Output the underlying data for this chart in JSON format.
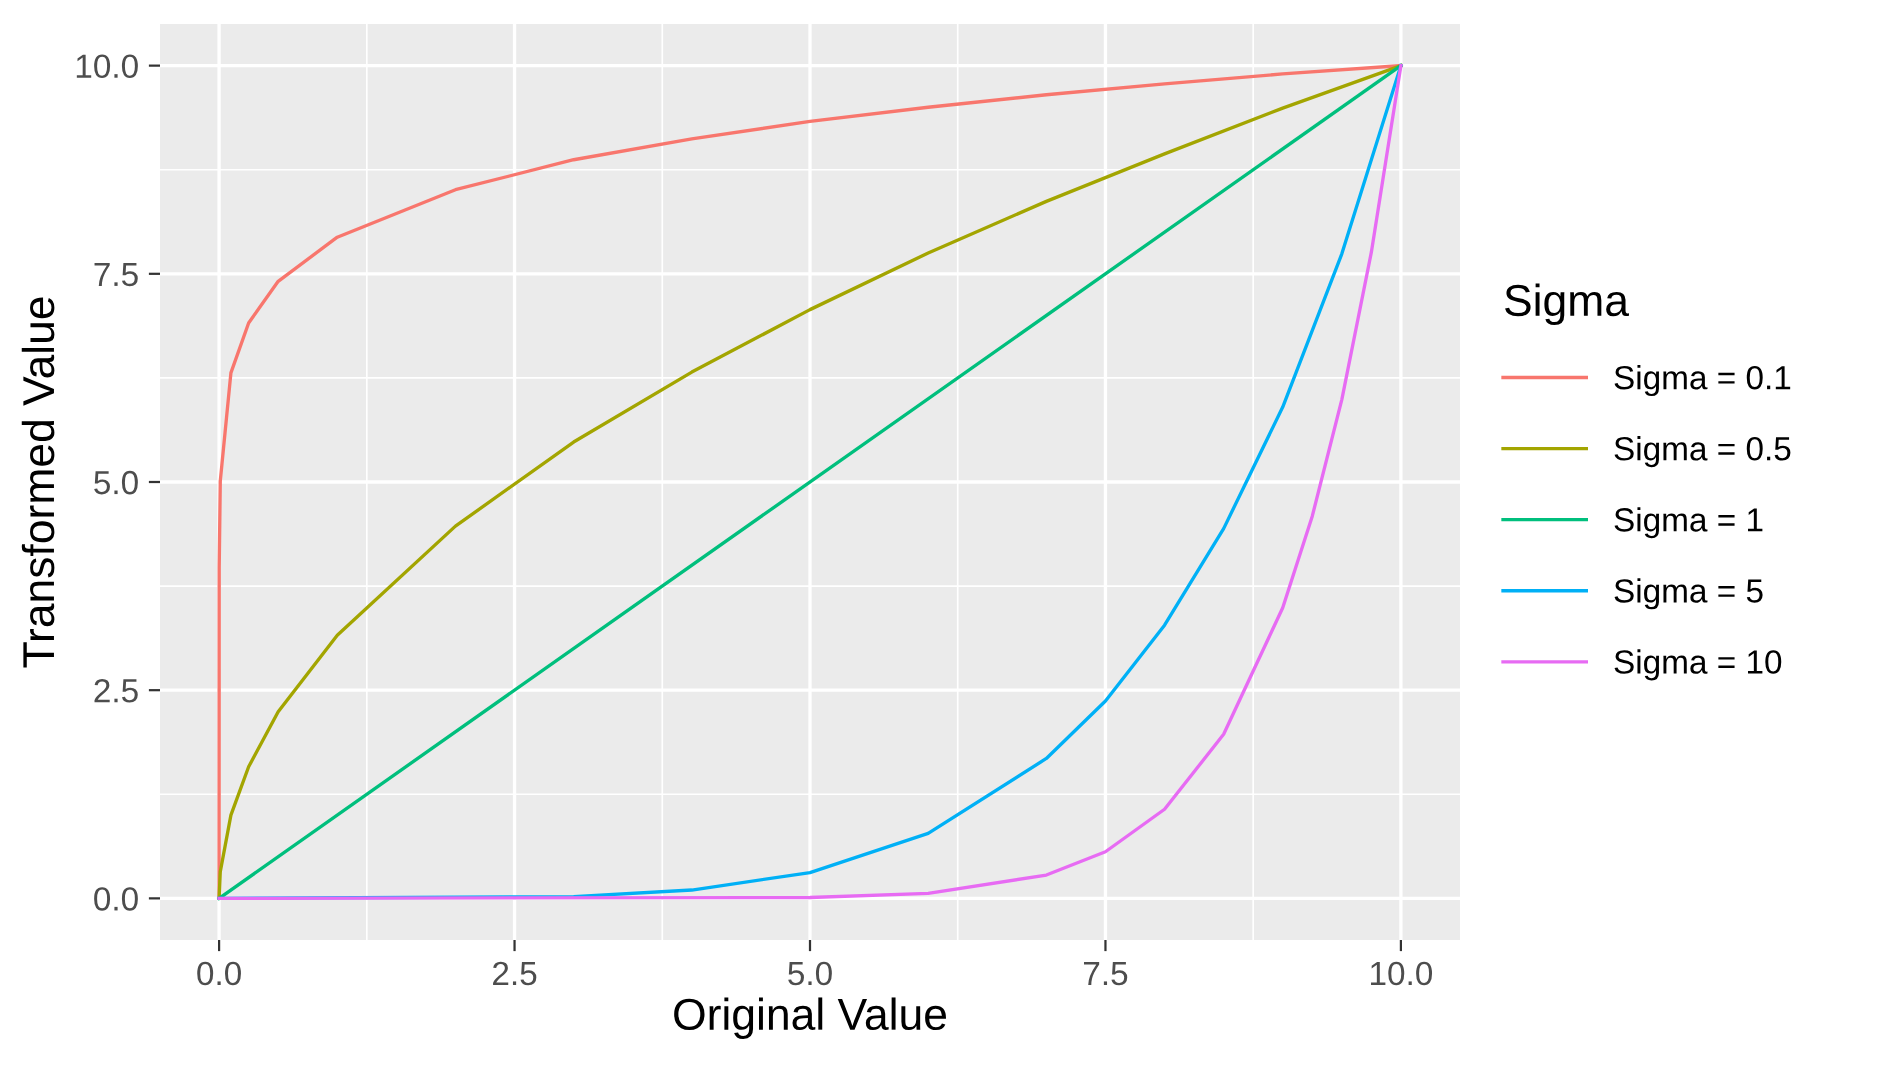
{
  "chart_data": {
    "type": "line",
    "xlabel": "Original Value",
    "ylabel": "Transformed Value",
    "legend_title": "Sigma",
    "xlim": [
      -0.5,
      10.5
    ],
    "ylim": [
      -0.5,
      10.5
    ],
    "xticks": [
      {
        "value": 0,
        "label": "0.0"
      },
      2.5,
      {
        "value": 5,
        "label": "5.0"
      },
      7.5,
      {
        "value": 10,
        "label": "10.0"
      }
    ],
    "yticks": [
      {
        "value": 0,
        "label": "0.0"
      },
      2.5,
      {
        "value": 5,
        "label": "5.0"
      },
      7.5,
      {
        "value": 10,
        "label": "10.0"
      }
    ],
    "grid": true,
    "legend": "right",
    "marker": "none",
    "line_style": "solid",
    "series": [
      {
        "name": "Sigma = 0.1",
        "color": "#f8766d",
        "x": [
          0,
          0.001,
          0.01,
          0.1,
          0.25,
          0.5,
          1,
          2,
          3,
          4,
          5,
          6,
          7,
          8,
          9,
          10
        ],
        "values": [
          0,
          3.98,
          5.01,
          6.31,
          6.91,
          7.41,
          7.94,
          8.51,
          8.87,
          9.12,
          9.33,
          9.5,
          9.65,
          9.78,
          9.9,
          10
        ]
      },
      {
        "name": "Sigma = 0.5",
        "color": "#a3a500",
        "x": [
          0,
          0.01,
          0.1,
          0.25,
          0.5,
          1,
          2,
          3,
          4,
          5,
          6,
          7,
          8,
          9,
          10
        ],
        "values": [
          0,
          0.32,
          1.0,
          1.58,
          2.24,
          3.16,
          4.47,
          5.48,
          6.32,
          7.07,
          7.75,
          8.37,
          8.94,
          9.49,
          10
        ]
      },
      {
        "name": "Sigma = 1",
        "color": "#00bf7d",
        "x": [
          0,
          10
        ],
        "values": [
          0,
          10
        ]
      },
      {
        "name": "Sigma = 5",
        "color": "#00b0f6",
        "x": [
          0,
          3,
          4,
          5,
          6,
          7,
          7.5,
          8,
          8.5,
          9,
          9.5,
          10
        ],
        "values": [
          0,
          0.02,
          0.1,
          0.31,
          0.78,
          1.68,
          2.37,
          3.28,
          4.44,
          5.9,
          7.74,
          10
        ]
      },
      {
        "name": "Sigma = 10",
        "color": "#e76bf3",
        "x": [
          0,
          5,
          6,
          7,
          7.5,
          8,
          8.5,
          9,
          9.25,
          9.5,
          9.75,
          10
        ],
        "values": [
          0,
          0.01,
          0.06,
          0.28,
          0.56,
          1.07,
          1.97,
          3.49,
          4.59,
          5.99,
          7.76,
          10
        ]
      }
    ]
  }
}
